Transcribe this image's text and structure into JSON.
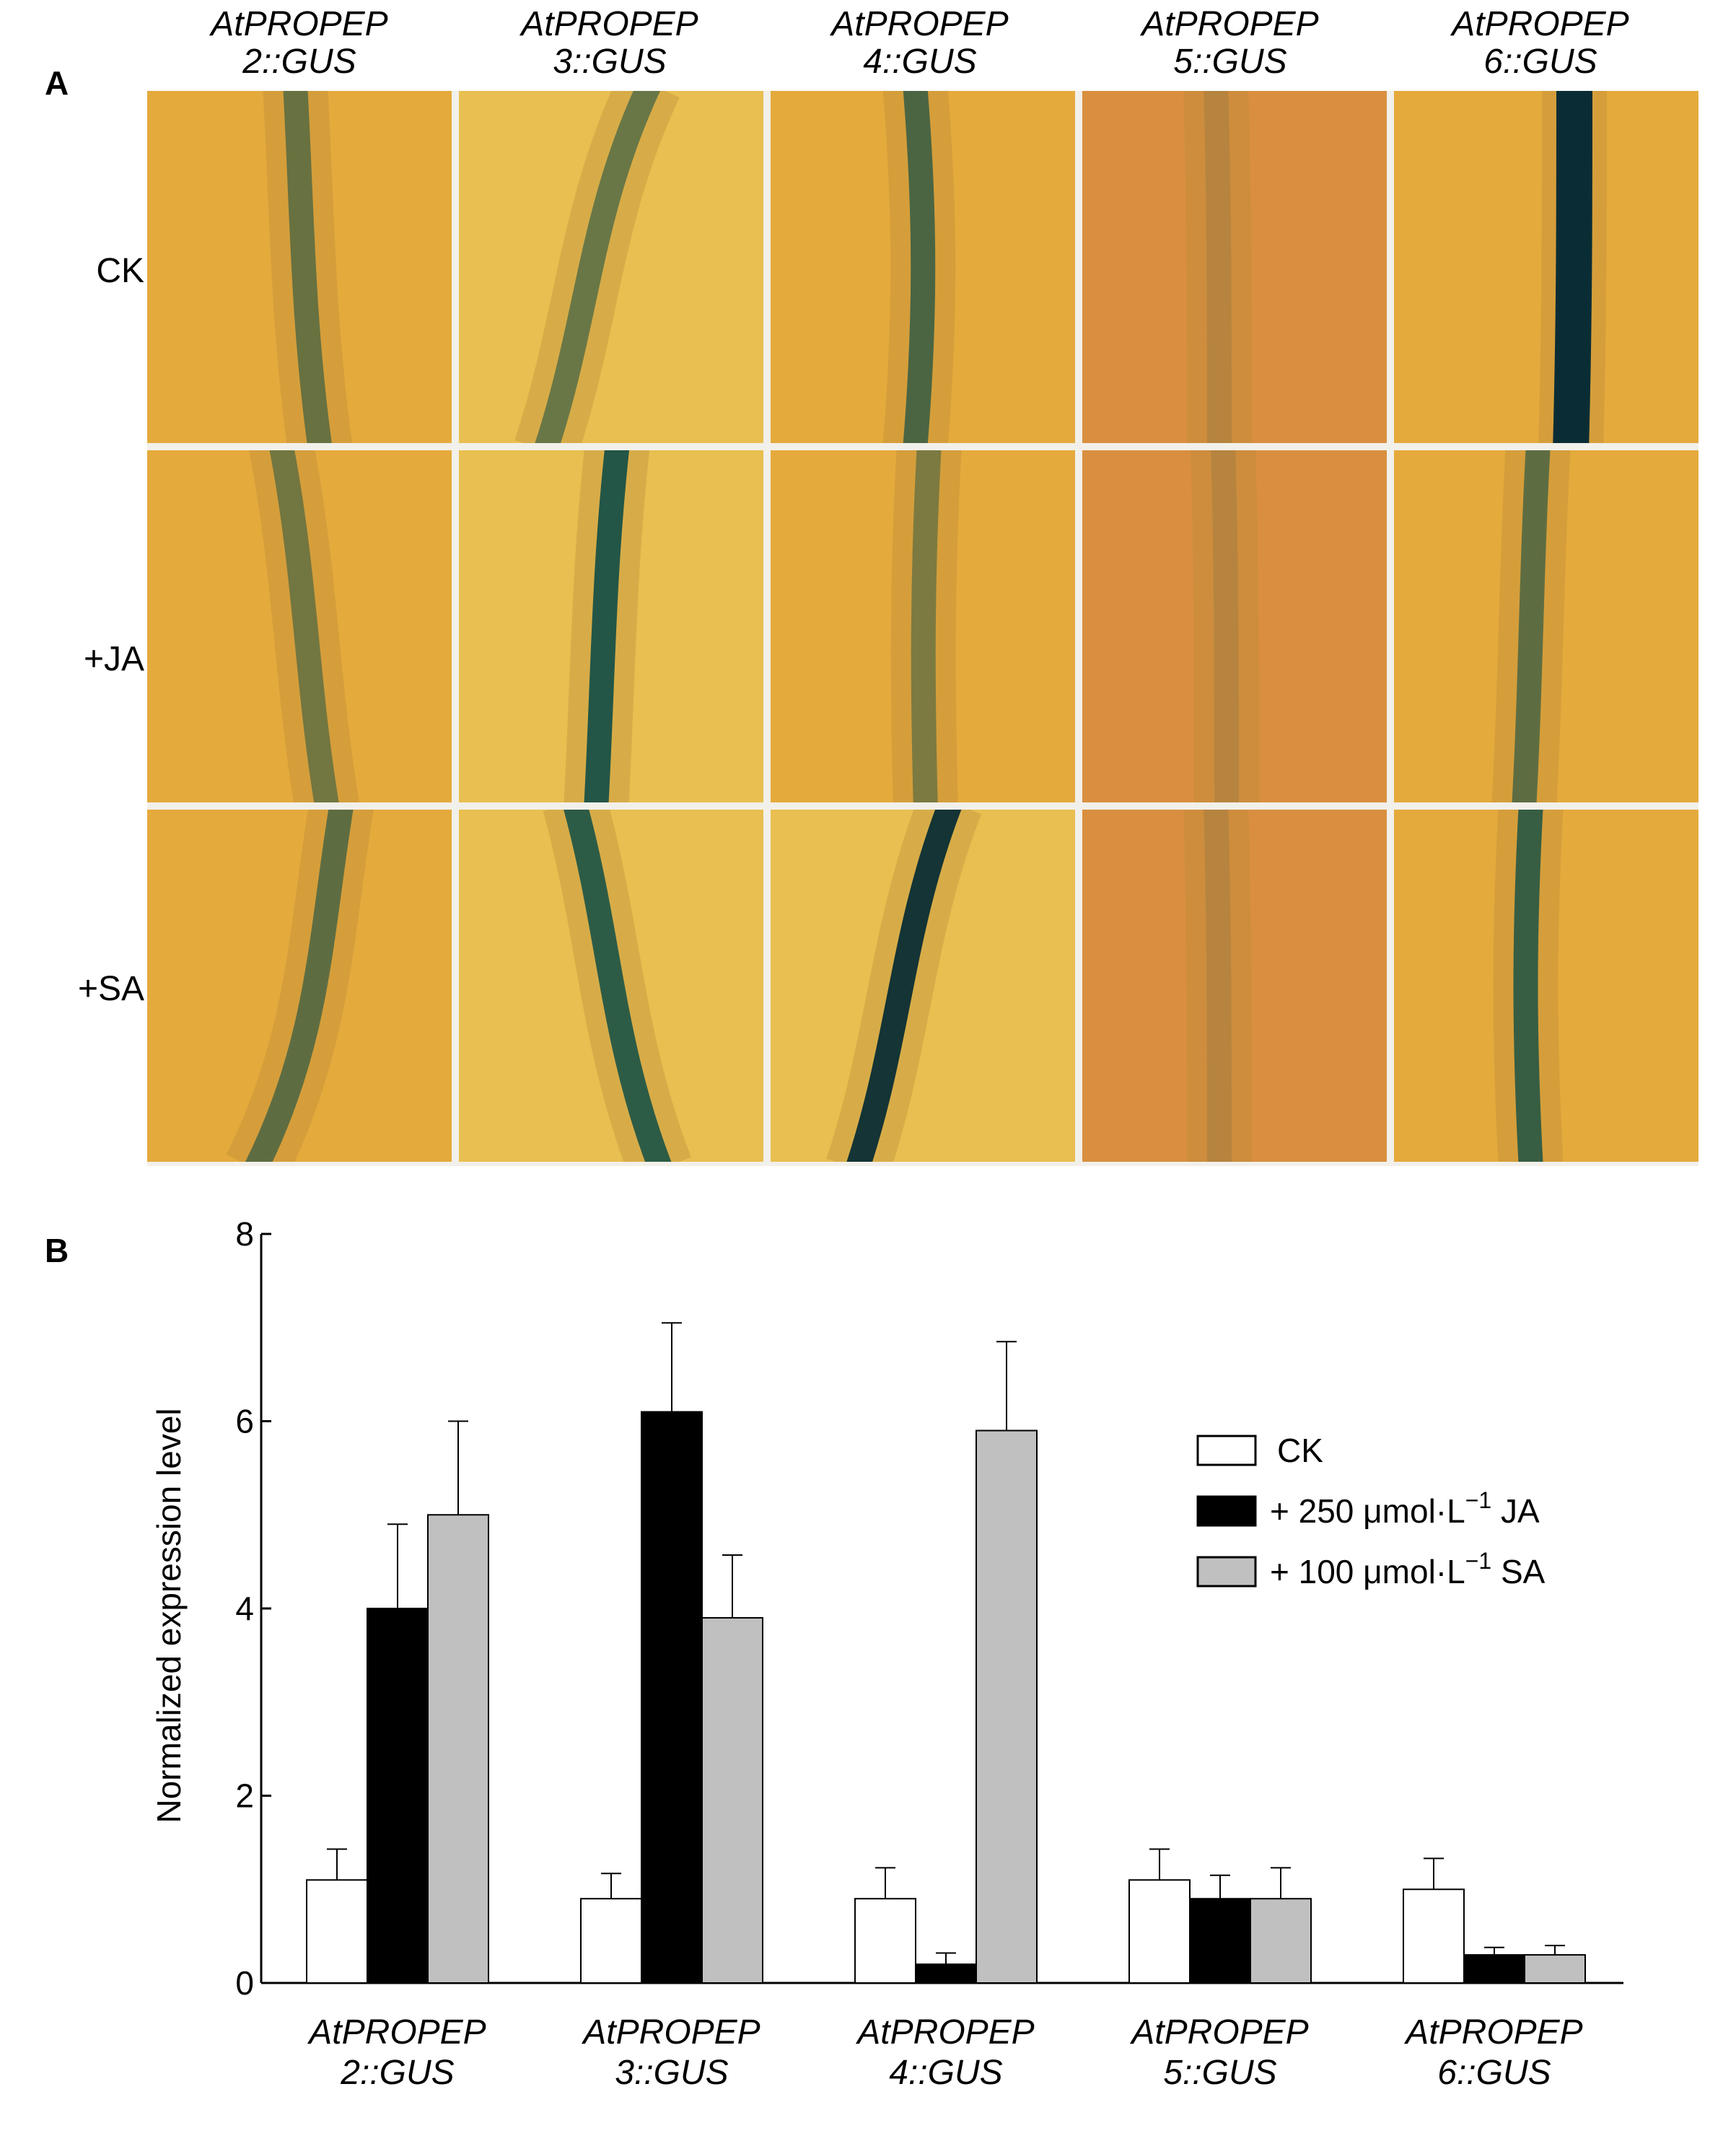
{
  "panel_a": {
    "letter": "A",
    "columns": [
      {
        "line1": "AtPROPEP",
        "line2": "2::GUS"
      },
      {
        "line1": "AtPROPEP",
        "line2": "3::GUS"
      },
      {
        "line1": "AtPROPEP",
        "line2": "4::GUS"
      },
      {
        "line1": "AtPROPEP",
        "line2": "5::GUS"
      },
      {
        "line1": "AtPROPEP",
        "line2": "6::GUS"
      }
    ],
    "rows": [
      "CK",
      "+JA",
      "+SA"
    ],
    "stain_intensity": [
      [
        0.55,
        0.55,
        0.7,
        0.05,
        1.0
      ],
      [
        0.5,
        0.9,
        0.45,
        0.05,
        0.6
      ],
      [
        0.6,
        0.85,
        0.95,
        0.03,
        0.8
      ]
    ],
    "tile_colors": {
      "background": "#e5aa3c",
      "background_alt": "#d98f3f",
      "background_light": "#e8bf50",
      "stain": "#0f4d46",
      "stain_dark": "#0a2d35"
    }
  },
  "panel_b": {
    "letter": "B",
    "chart_data": {
      "type": "bar",
      "title": "",
      "xlabel": "",
      "ylabel": "Normalized expression level",
      "ylim": [
        0,
        8
      ],
      "yticks": [
        "0",
        "2",
        "4",
        "6",
        "8"
      ],
      "categories": [
        {
          "line1": "AtPROPEP",
          "line2": "2::GUS"
        },
        {
          "line1": "AtPROPEP",
          "line2": "3::GUS"
        },
        {
          "line1": "AtPROPEP",
          "line2": "4::GUS"
        },
        {
          "line1": "AtPROPEP",
          "line2": "5::GUS"
        },
        {
          "line1": "AtPROPEP",
          "line2": "6::GUS"
        }
      ],
      "series": [
        {
          "name": "CK",
          "legend_main": "CK",
          "legend_sup": "",
          "legend_tail": "",
          "color": "#ffffff",
          "values": [
            1.1,
            0.9,
            0.9,
            1.1,
            1.0
          ],
          "errors": [
            0.33,
            0.27,
            0.33,
            0.33,
            0.33
          ]
        },
        {
          "name": "+ 250 μmol·L−1 JA",
          "legend_main": "+ 250 μmol·L",
          "legend_sup": "−1",
          "legend_tail": " JA",
          "color": "#000000",
          "values": [
            4.0,
            6.1,
            0.2,
            0.9,
            0.3
          ],
          "errors": [
            0.9,
            0.95,
            0.12,
            0.25,
            0.08
          ]
        },
        {
          "name": "+ 100 μmol·L−1 SA",
          "legend_main": "+ 100 μmol·L",
          "legend_sup": "−1",
          "legend_tail": " SA",
          "color": "#c0c0c0",
          "values": [
            5.0,
            3.9,
            5.9,
            0.9,
            0.3
          ],
          "errors": [
            1.0,
            0.67,
            0.95,
            0.33,
            0.1
          ]
        }
      ],
      "grid": false,
      "legend_position": "right"
    }
  }
}
